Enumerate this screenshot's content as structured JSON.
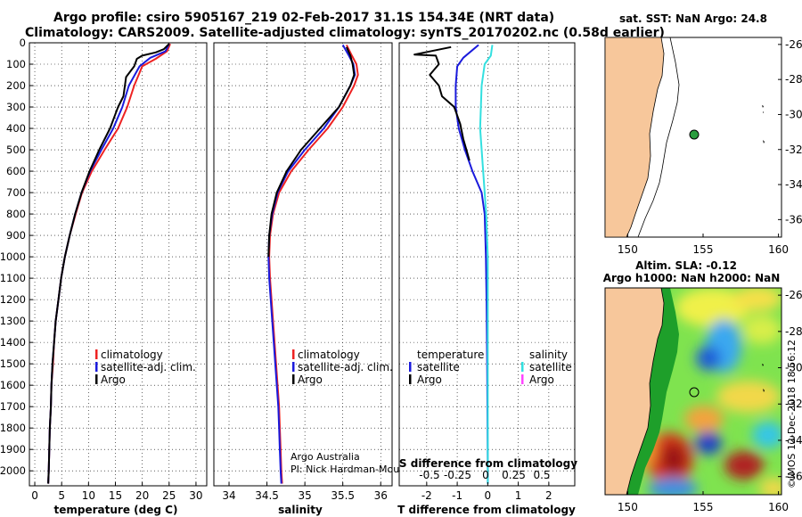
{
  "header": {
    "title_line1": "Argo profile: csiro 5905167_219 02-Feb-2017 31.1S 154.34E (NRT data)",
    "title_line2": "Climatology: CARS2009. Satellite-adjusted climatology: synTS_20170202.nc (0.58d earlier)"
  },
  "colors": {
    "climatology": "#ee2222",
    "satellite": "#1a1adc",
    "argo": "#000000",
    "sal_satellite": "#33e0e0",
    "sal_argo": "#ff44ff",
    "land": "#f7c79b"
  },
  "chart_data": [
    {
      "id": "temperature",
      "type": "line",
      "xlabel": "temperature (deg C)",
      "ylabel": "",
      "xlim": [
        -1,
        32
      ],
      "ylim": [
        2070,
        0
      ],
      "xticks": [
        0,
        5,
        10,
        15,
        20,
        25,
        30
      ],
      "yticks": [
        0,
        100,
        200,
        300,
        400,
        500,
        600,
        700,
        800,
        900,
        1000,
        1100,
        1200,
        1300,
        1400,
        1500,
        1600,
        1700,
        1800,
        1900,
        2000
      ],
      "legend": [
        "climatology",
        "satellite-adj. clim.",
        "Argo"
      ],
      "series": [
        {
          "name": "climatology",
          "color": "#ee2222",
          "points": [
            [
              25.2,
              5
            ],
            [
              24.6,
              40
            ],
            [
              22.5,
              75
            ],
            [
              20.0,
              110
            ],
            [
              18.5,
              200
            ],
            [
              17.2,
              300
            ],
            [
              15.5,
              400
            ],
            [
              13.0,
              500
            ],
            [
              10.6,
              600
            ],
            [
              8.8,
              700
            ],
            [
              7.6,
              800
            ],
            [
              6.5,
              900
            ],
            [
              5.6,
              1000
            ],
            [
              4.9,
              1100
            ],
            [
              4.4,
              1200
            ],
            [
              3.9,
              1300
            ],
            [
              3.6,
              1400
            ],
            [
              3.4,
              1500
            ],
            [
              3.1,
              1600
            ],
            [
              3.0,
              1700
            ],
            [
              2.8,
              1800
            ],
            [
              2.7,
              1900
            ],
            [
              2.6,
              2000
            ],
            [
              2.5,
              2060
            ]
          ]
        },
        {
          "name": "satellite-adj. clim.",
          "color": "#1a1adc",
          "points": [
            [
              25.0,
              5
            ],
            [
              24.3,
              40
            ],
            [
              21.5,
              70
            ],
            [
              19.5,
              110
            ],
            [
              17.5,
              200
            ],
            [
              16.3,
              300
            ],
            [
              14.6,
              400
            ],
            [
              12.4,
              500
            ],
            [
              10.3,
              600
            ],
            [
              8.7,
              700
            ],
            [
              7.5,
              800
            ],
            [
              6.5,
              900
            ],
            [
              5.6,
              1000
            ],
            [
              4.9,
              1100
            ],
            [
              4.4,
              1200
            ],
            [
              3.9,
              1300
            ],
            [
              3.6,
              1400
            ],
            [
              3.3,
              1500
            ],
            [
              3.1,
              1600
            ],
            [
              3.0,
              1700
            ],
            [
              2.8,
              1800
            ],
            [
              2.7,
              1900
            ],
            [
              2.6,
              2000
            ],
            [
              2.5,
              2060
            ]
          ]
        },
        {
          "name": "Argo",
          "color": "#000000",
          "points": [
            [
              25.0,
              5
            ],
            [
              24.0,
              30
            ],
            [
              22.5,
              45
            ],
            [
              20.0,
              60
            ],
            [
              19.0,
              75
            ],
            [
              18.5,
              110
            ],
            [
              17.0,
              160
            ],
            [
              16.5,
              250
            ],
            [
              15.5,
              300
            ],
            [
              14.0,
              400
            ],
            [
              12.0,
              500
            ],
            [
              10.2,
              600
            ],
            [
              8.7,
              700
            ],
            [
              7.5,
              800
            ],
            [
              6.5,
              900
            ],
            [
              5.6,
              1000
            ],
            [
              4.9,
              1100
            ],
            [
              4.4,
              1200
            ],
            [
              3.9,
              1300
            ],
            [
              3.6,
              1400
            ],
            [
              3.3,
              1500
            ],
            [
              3.1,
              1600
            ],
            [
              3.0,
              1700
            ],
            [
              2.8,
              1800
            ],
            [
              2.7,
              1900
            ],
            [
              2.6,
              2000
            ],
            [
              2.5,
              2060
            ]
          ]
        }
      ]
    },
    {
      "id": "salinity",
      "type": "line",
      "xlabel": "salinity",
      "xlim": [
        33.8,
        36.15
      ],
      "ylim": [
        2070,
        0
      ],
      "xticks": [
        34,
        34.5,
        35,
        35.5,
        36
      ],
      "legend": [
        "climatology",
        "satellite-adj. clim.",
        "Argo"
      ],
      "credits": [
        "Argo Australia",
        "PI: Nick Hardman-Mountford"
      ],
      "series": [
        {
          "name": "climatology",
          "color": "#ee2222",
          "points": [
            [
              35.55,
              10
            ],
            [
              35.62,
              60
            ],
            [
              35.68,
              100
            ],
            [
              35.7,
              150
            ],
            [
              35.65,
              200
            ],
            [
              35.5,
              300
            ],
            [
              35.3,
              400
            ],
            [
              35.05,
              500
            ],
            [
              34.82,
              600
            ],
            [
              34.66,
              700
            ],
            [
              34.58,
              800
            ],
            [
              34.54,
              900
            ],
            [
              34.53,
              1000
            ],
            [
              34.54,
              1100
            ],
            [
              34.56,
              1200
            ],
            [
              34.58,
              1300
            ],
            [
              34.6,
              1400
            ],
            [
              34.62,
              1500
            ],
            [
              34.64,
              1600
            ],
            [
              34.66,
              1700
            ],
            [
              34.67,
              1800
            ],
            [
              34.68,
              1900
            ],
            [
              34.69,
              2000
            ],
            [
              34.7,
              2060
            ]
          ]
        },
        {
          "name": "satellite-adj. clim.",
          "color": "#1a1adc",
          "points": [
            [
              35.5,
              10
            ],
            [
              35.58,
              60
            ],
            [
              35.64,
              100
            ],
            [
              35.66,
              150
            ],
            [
              35.6,
              200
            ],
            [
              35.45,
              300
            ],
            [
              35.25,
              400
            ],
            [
              35.0,
              500
            ],
            [
              34.78,
              600
            ],
            [
              34.64,
              700
            ],
            [
              34.57,
              800
            ],
            [
              34.53,
              900
            ],
            [
              34.52,
              1000
            ],
            [
              34.53,
              1100
            ],
            [
              34.55,
              1200
            ],
            [
              34.57,
              1300
            ],
            [
              34.59,
              1400
            ],
            [
              34.61,
              1500
            ],
            [
              34.63,
              1600
            ],
            [
              34.65,
              1700
            ],
            [
              34.66,
              1800
            ],
            [
              34.67,
              1900
            ],
            [
              34.68,
              2000
            ],
            [
              34.69,
              2060
            ]
          ]
        },
        {
          "name": "Argo",
          "color": "#000000",
          "points": [
            [
              35.55,
              20
            ],
            [
              35.6,
              60
            ],
            [
              35.63,
              100
            ],
            [
              35.65,
              150
            ],
            [
              35.6,
              200
            ],
            [
              35.45,
              300
            ],
            [
              35.2,
              400
            ],
            [
              34.95,
              500
            ],
            [
              34.76,
              600
            ],
            [
              34.63,
              700
            ],
            [
              34.56,
              800
            ],
            [
              34.53,
              900
            ],
            [
              34.52,
              1000
            ]
          ]
        }
      ]
    },
    {
      "id": "differences",
      "type": "line",
      "xlabel": "T difference from climatology",
      "xlabel_top": "S difference from climatology",
      "xlim": [
        -2.9,
        2.85
      ],
      "ylim": [
        2070,
        0
      ],
      "xticks": [
        -2,
        -1,
        0,
        1,
        2
      ],
      "xticks_top": [
        "-0.5",
        "-0.25",
        "0",
        "0.25",
        "0.5"
      ],
      "legend_left_title": "temperature",
      "legend_left": [
        "satellite",
        "Argo"
      ],
      "legend_right_title": "salinity",
      "legend_right": [
        "satellite",
        "Argo"
      ],
      "series": [
        {
          "name": "T satellite",
          "color": "#1a1adc",
          "points": [
            [
              -0.3,
              10
            ],
            [
              -0.8,
              70
            ],
            [
              -1.0,
              110
            ],
            [
              -1.05,
              200
            ],
            [
              -1.05,
              300
            ],
            [
              -0.95,
              400
            ],
            [
              -0.75,
              500
            ],
            [
              -0.5,
              600
            ],
            [
              -0.2,
              700
            ],
            [
              -0.1,
              800
            ],
            [
              -0.06,
              1000
            ],
            [
              -0.04,
              1200
            ],
            [
              -0.02,
              1500
            ],
            [
              0.0,
              2000
            ],
            [
              0.0,
              2060
            ]
          ]
        },
        {
          "name": "Argo",
          "color": "#000000",
          "points": [
            [
              -1.2,
              20
            ],
            [
              -2.4,
              55
            ],
            [
              -1.7,
              60
            ],
            [
              -1.6,
              100
            ],
            [
              -1.9,
              150
            ],
            [
              -1.6,
              200
            ],
            [
              -1.5,
              250
            ],
            [
              -1.1,
              300
            ],
            [
              -0.9,
              380
            ],
            [
              -0.8,
              450
            ],
            [
              -0.7,
              500
            ],
            [
              -0.6,
              550
            ]
          ]
        },
        {
          "name": "S satellite",
          "color": "#33e0e0",
          "points": [
            [
              0.15,
              10
            ],
            [
              0.1,
              60
            ],
            [
              -0.1,
              100
            ],
            [
              -0.2,
              200
            ],
            [
              -0.25,
              400
            ],
            [
              -0.15,
              600
            ],
            [
              -0.05,
              800
            ],
            [
              0.0,
              1000
            ],
            [
              0.0,
              2060
            ]
          ]
        }
      ]
    }
  ],
  "maps": {
    "sst": {
      "title": "sat. SST: NaN Argo: 24.8",
      "xticks": [
        "150",
        "155",
        "160"
      ],
      "yticks": [
        "-26",
        "-28",
        "-30",
        "-32",
        "-34",
        "-36"
      ],
      "float_lon": 154.34,
      "float_lat": -31.1
    },
    "sla": {
      "title_line1": "Altim. SLA: -0.12",
      "title_line2": "Argo h1000: NaN h2000: NaN",
      "xticks": [
        "150",
        "155",
        "160"
      ],
      "yticks": [
        "-26",
        "-28",
        "-30",
        "-32",
        "-34",
        "-36"
      ],
      "float_lon": 154.34,
      "float_lat": -31.1
    }
  },
  "watermark": "©IMOS 12-Dec-2018 18:56:12"
}
